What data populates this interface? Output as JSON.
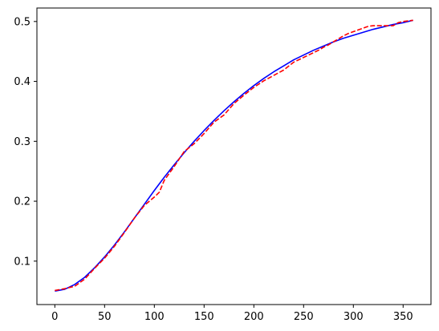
{
  "chart_data": {
    "type": "line",
    "title": "",
    "xlabel": "",
    "ylabel": "",
    "xlim": [
      -18,
      378
    ],
    "ylim": [
      0.0275,
      0.5225
    ],
    "grid": false,
    "legend": "none",
    "x_ticks": [
      {
        "value": 0,
        "label": "0"
      },
      {
        "value": 50,
        "label": "50"
      },
      {
        "value": 100,
        "label": "100"
      },
      {
        "value": 150,
        "label": "150"
      },
      {
        "value": 200,
        "label": "200"
      },
      {
        "value": 250,
        "label": "250"
      },
      {
        "value": 300,
        "label": "300"
      },
      {
        "value": 350,
        "label": "350"
      }
    ],
    "y_ticks": [
      {
        "value": 0.1,
        "label": "0.1"
      },
      {
        "value": 0.2,
        "label": "0.2"
      },
      {
        "value": 0.3,
        "label": "0.3"
      },
      {
        "value": 0.4,
        "label": "0.4"
      },
      {
        "value": 0.5,
        "label": "0.5"
      }
    ],
    "series": [
      {
        "color": "#0000ff",
        "style": "solid",
        "x": [
          0,
          10,
          20,
          30,
          40,
          50,
          60,
          70,
          80,
          90,
          100,
          110,
          120,
          130,
          140,
          150,
          160,
          170,
          180,
          190,
          200,
          210,
          220,
          230,
          240,
          250,
          260,
          270,
          280,
          290,
          300,
          310,
          320,
          330,
          340,
          350,
          360
        ],
        "y": [
          0.05,
          0.053,
          0.061,
          0.073,
          0.089,
          0.107,
          0.127,
          0.149,
          0.172,
          0.195,
          0.218,
          0.24,
          0.261,
          0.281,
          0.3,
          0.318,
          0.335,
          0.351,
          0.366,
          0.38,
          0.393,
          0.405,
          0.416,
          0.426,
          0.436,
          0.444,
          0.452,
          0.459,
          0.466,
          0.472,
          0.477,
          0.482,
          0.487,
          0.491,
          0.495,
          0.498,
          0.502
        ]
      },
      {
        "color": "#ff0000",
        "style": "dashed",
        "x": [
          0,
          10,
          20,
          30,
          40,
          50,
          60,
          70,
          80,
          90,
          100,
          105,
          110,
          120,
          130,
          140,
          150,
          160,
          170,
          180,
          190,
          200,
          210,
          220,
          230,
          240,
          250,
          260,
          265,
          270,
          275,
          280,
          285,
          290,
          295,
          300,
          305,
          310,
          315,
          320,
          330,
          340,
          345,
          350,
          355,
          360
        ],
        "y": [
          0.051,
          0.054,
          0.058,
          0.07,
          0.088,
          0.105,
          0.125,
          0.148,
          0.172,
          0.193,
          0.207,
          0.215,
          0.235,
          0.258,
          0.283,
          0.296,
          0.313,
          0.332,
          0.344,
          0.363,
          0.377,
          0.39,
          0.401,
          0.41,
          0.419,
          0.432,
          0.44,
          0.448,
          0.452,
          0.457,
          0.461,
          0.466,
          0.471,
          0.476,
          0.48,
          0.483,
          0.486,
          0.489,
          0.492,
          0.493,
          0.493,
          0.493,
          0.498,
          0.5,
          0.501,
          0.502
        ]
      }
    ]
  }
}
